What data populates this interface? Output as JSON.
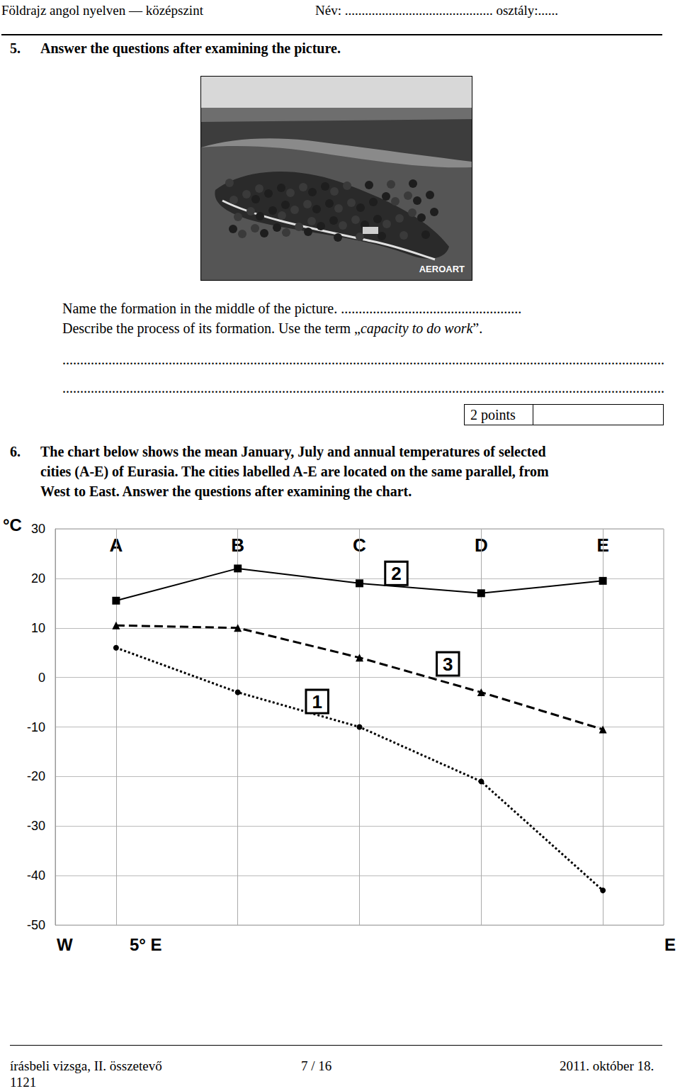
{
  "header": {
    "left": "Földrajz angol nyelven — középszint",
    "right": "Név: ............................................ osztály:......"
  },
  "question5": {
    "number": "5.",
    "title": "Answer the questions after examining the picture.",
    "photo_logo": "AEROART",
    "line1": "Name the formation in the middle of the picture. ...................................................",
    "line2": [
      "Describe the process of its formation. Use the term „",
      "capacity to do work",
      "”."
    ],
    "answer_lines": [
      "..........................................................................................................................................................................",
      ".........................................................................................................................................................................."
    ],
    "points": "2 points"
  },
  "question6": {
    "number": "6.",
    "lines": [
      "The chart below shows the mean January, July and annual temperatures of selected",
      "cities (A-E) of Eurasia. The cities labelled A-E are located on the same parallel, from",
      "West to East. Answer the questions after examining the chart."
    ]
  },
  "chart_data": {
    "type": "line",
    "ylabel": "°C",
    "categories": [
      "A",
      "B",
      "C",
      "D",
      "E"
    ],
    "series": [
      {
        "name": "1",
        "color": "#000000",
        "line_style": "dotted",
        "marker": "circle",
        "values": [
          6,
          -3,
          -10,
          -21,
          -43
        ]
      },
      {
        "name": "2",
        "color": "#000000",
        "line_style": "solid",
        "marker": "square",
        "values": [
          15.5,
          22,
          19,
          17,
          19.5
        ]
      },
      {
        "name": "3",
        "color": "#000000",
        "line_style": "dashed",
        "marker": "triangle",
        "values": [
          10.5,
          10,
          4,
          -3,
          -10.5
        ]
      }
    ],
    "ylim": [
      -50,
      30
    ],
    "yticks": [
      -50,
      -40,
      -30,
      -20,
      -10,
      0,
      10,
      20,
      30
    ],
    "grid": true
  },
  "axis_ends": {
    "west": "W",
    "start": "5° E",
    "east": "E"
  },
  "footer": {
    "left": "írásbeli vizsga, II. összetevő",
    "center": "7 / 16",
    "right": "2011. október 18.",
    "code": "1121"
  }
}
